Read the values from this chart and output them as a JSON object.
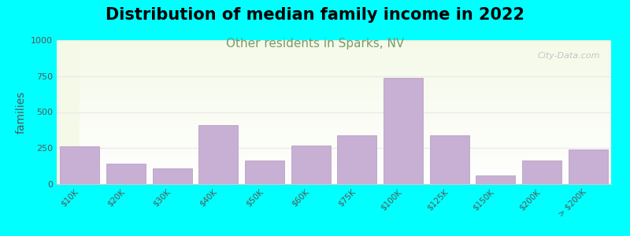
{
  "title": "Distribution of median family income in 2022",
  "subtitle": "Other residents in Sparks, NV",
  "xlabel": "",
  "ylabel": "families",
  "categories": [
    "$10K",
    "$20K",
    "$30K",
    "$40K",
    "$50K",
    "$60K",
    "$75K",
    "$100K",
    "$125K",
    "$150K",
    "$200K",
    "> $200K"
  ],
  "values": [
    260,
    140,
    110,
    410,
    165,
    270,
    340,
    735,
    340,
    60,
    165,
    240
  ],
  "bar_color": "#c8afd4",
  "bar_edge_color": "#b099bc",
  "background_top": "#f5f9e8",
  "background_bottom": "#ffffff",
  "outer_background": "#00ffff",
  "title_color": "#000000",
  "subtitle_color": "#7a9a6a",
  "ylabel_color": "#555555",
  "ytick_labels": [
    0,
    250,
    500,
    750,
    1000
  ],
  "ylim": [
    0,
    1000
  ],
  "grid_color": "#e8e8e8",
  "watermark": "City-Data.com",
  "title_fontsize": 15,
  "subtitle_fontsize": 11,
  "ylabel_fontsize": 10
}
